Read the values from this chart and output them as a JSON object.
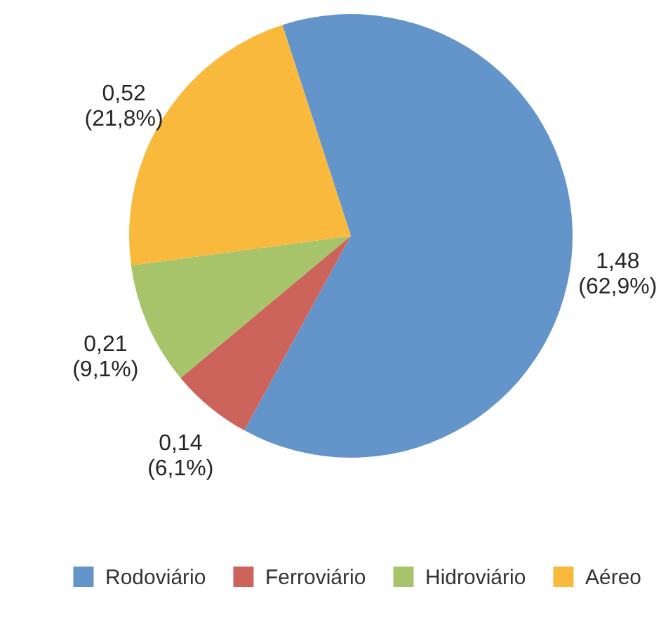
{
  "chart_data": {
    "type": "pie",
    "categories": [
      "Rodoviário",
      "Ferroviário",
      "Hidroviário",
      "Aéreo"
    ],
    "values": [
      1.48,
      0.14,
      0.21,
      0.52
    ],
    "colors": [
      "#6495ca",
      "#cd645b",
      "#a8c46b",
      "#f9b93d"
    ],
    "value_labels": [
      "1,48\n(62,9%)",
      "0,14\n(6,1%)",
      "0,21\n(9,1%)",
      "0,52\n(21,8%)"
    ],
    "legend": "bottom"
  }
}
